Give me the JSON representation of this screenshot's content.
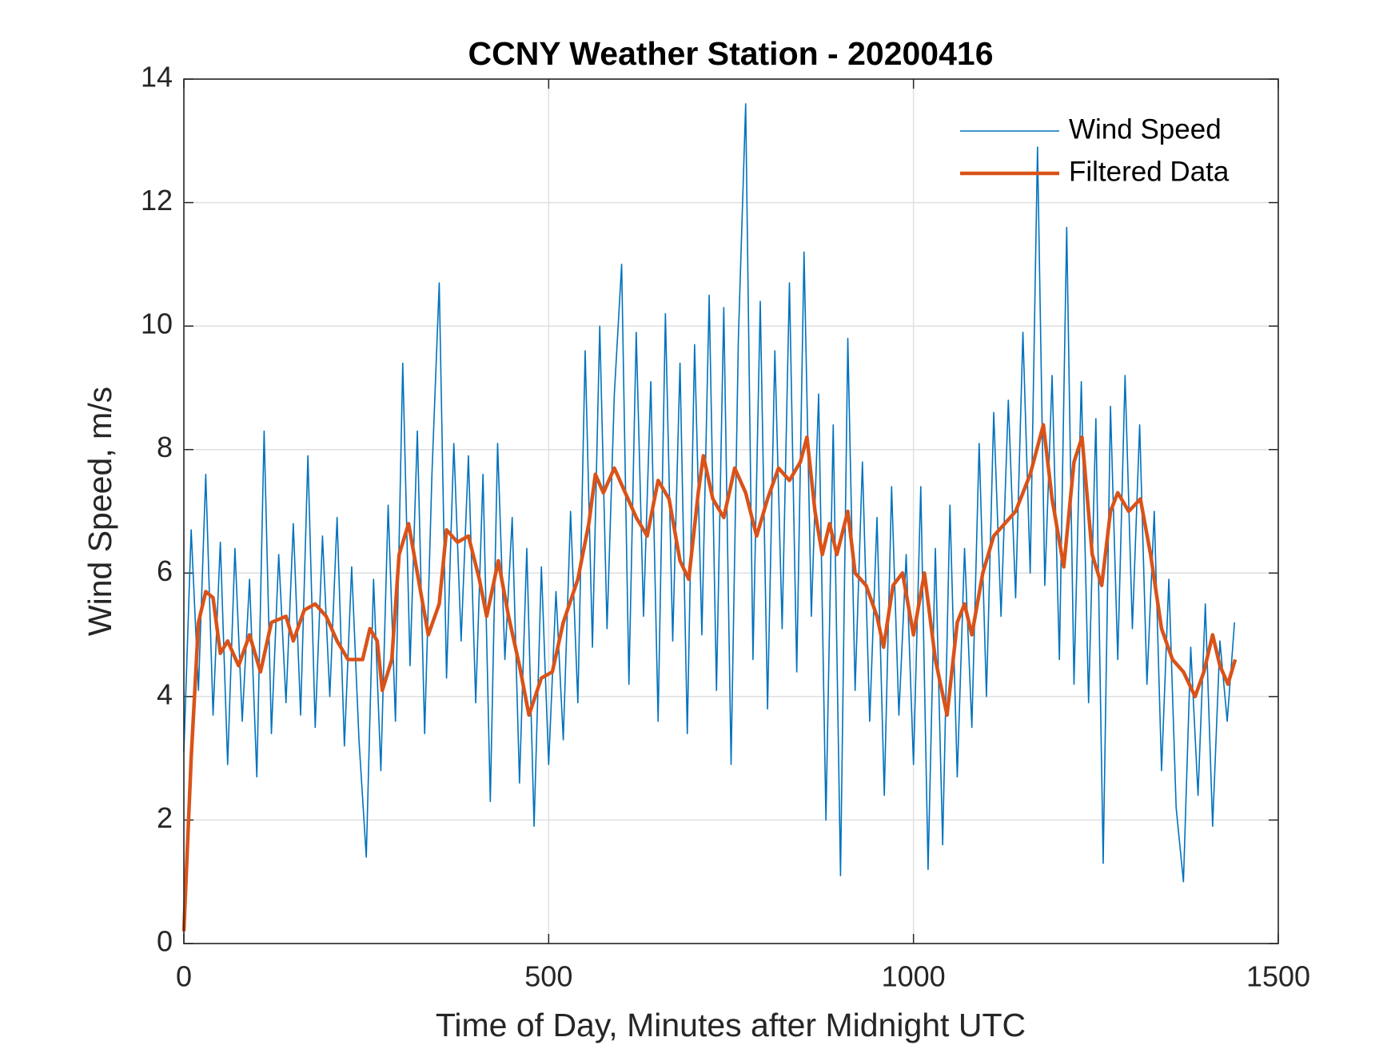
{
  "chart_data": {
    "type": "line",
    "title": "CCNY Weather Station - 20200416",
    "xlabel": "Time of Day, Minutes after Midnight UTC",
    "ylabel": "Wind Speed, m/s",
    "xlim": [
      0,
      1500
    ],
    "xticks": [
      0,
      500,
      1000,
      1500
    ],
    "ylim": [
      0,
      14
    ],
    "yticks": [
      0,
      2,
      4,
      6,
      8,
      10,
      12,
      14
    ],
    "grid": true,
    "legend": "top-right",
    "series": [
      {
        "name": "Wind Speed",
        "color": "#0072BD",
        "x": [
          0,
          10,
          20,
          30,
          40,
          50,
          60,
          70,
          80,
          90,
          100,
          110,
          120,
          130,
          140,
          150,
          160,
          170,
          180,
          190,
          200,
          210,
          220,
          230,
          240,
          250,
          260,
          270,
          280,
          290,
          300,
          310,
          320,
          330,
          340,
          350,
          360,
          370,
          380,
          390,
          400,
          410,
          420,
          430,
          440,
          450,
          460,
          470,
          480,
          490,
          500,
          510,
          520,
          530,
          540,
          550,
          560,
          570,
          580,
          590,
          600,
          610,
          620,
          630,
          640,
          650,
          660,
          670,
          680,
          690,
          700,
          710,
          720,
          730,
          740,
          750,
          760,
          770,
          780,
          790,
          800,
          810,
          820,
          830,
          840,
          850,
          860,
          870,
          880,
          890,
          900,
          910,
          920,
          930,
          940,
          950,
          960,
          970,
          980,
          990,
          1000,
          1010,
          1020,
          1030,
          1040,
          1050,
          1060,
          1070,
          1080,
          1090,
          1100,
          1110,
          1120,
          1130,
          1140,
          1150,
          1160,
          1170,
          1180,
          1190,
          1200,
          1210,
          1220,
          1230,
          1240,
          1250,
          1260,
          1270,
          1280,
          1290,
          1300,
          1310,
          1320,
          1330,
          1340,
          1350,
          1360,
          1370,
          1380,
          1390,
          1400,
          1410,
          1420,
          1430,
          1440
        ],
        "values": [
          3.1,
          6.7,
          4.1,
          7.6,
          3.7,
          6.5,
          2.9,
          6.4,
          3.6,
          5.9,
          2.7,
          8.3,
          3.4,
          6.3,
          3.9,
          6.8,
          3.7,
          7.9,
          3.5,
          6.6,
          4.0,
          6.9,
          3.2,
          6.1,
          3.3,
          1.4,
          5.9,
          2.8,
          7.1,
          3.6,
          9.4,
          4.5,
          8.3,
          3.4,
          7.6,
          10.7,
          4.3,
          8.1,
          4.9,
          7.9,
          3.9,
          7.6,
          2.3,
          8.1,
          4.6,
          6.9,
          2.6,
          6.4,
          1.9,
          6.1,
          2.9,
          5.7,
          3.3,
          7.0,
          3.9,
          9.6,
          4.8,
          10.0,
          5.1,
          8.9,
          11.0,
          4.2,
          9.9,
          5.3,
          9.1,
          3.6,
          10.2,
          4.9,
          9.4,
          3.4,
          9.7,
          5.0,
          10.5,
          4.1,
          10.3,
          2.9,
          9.8,
          13.6,
          4.6,
          10.4,
          3.8,
          9.6,
          5.1,
          10.7,
          4.4,
          11.2,
          5.3,
          8.9,
          2.0,
          8.4,
          1.1,
          9.8,
          4.1,
          7.8,
          3.6,
          6.9,
          2.4,
          7.4,
          3.7,
          6.3,
          2.9,
          7.4,
          1.2,
          6.4,
          1.6,
          7.1,
          2.7,
          6.4,
          3.5,
          8.1,
          4.0,
          8.6,
          5.3,
          8.8,
          5.6,
          9.9,
          6.0,
          12.9,
          5.8,
          9.2,
          4.6,
          11.6,
          4.2,
          9.1,
          3.9,
          8.5,
          1.3,
          8.7,
          4.6,
          9.2,
          5.1,
          8.4,
          4.2,
          7.0,
          2.8,
          5.9,
          2.2,
          1.0,
          4.8,
          2.4,
          5.5,
          1.9,
          4.9,
          3.6,
          5.2
        ]
      },
      {
        "name": "Filtered Data",
        "color": "#D95319",
        "x": [
          0,
          10,
          20,
          30,
          40,
          50,
          60,
          75,
          90,
          105,
          120,
          140,
          150,
          165,
          180,
          195,
          210,
          225,
          245,
          255,
          265,
          272,
          285,
          295,
          308,
          320,
          335,
          350,
          360,
          375,
          390,
          405,
          415,
          431,
          445,
          460,
          473,
          490,
          505,
          520,
          540,
          555,
          564,
          575,
          590,
          605,
          620,
          635,
          650,
          665,
          680,
          692,
          705,
          712,
          725,
          740,
          755,
          770,
          785,
          800,
          815,
          830,
          845,
          854,
          865,
          875,
          885,
          895,
          910,
          920,
          935,
          950,
          959,
          972,
          985,
          1000,
          1015,
          1030,
          1046,
          1060,
          1070,
          1080,
          1095,
          1110,
          1125,
          1140,
          1160,
          1178,
          1190,
          1206,
          1220,
          1231,
          1245,
          1258,
          1270,
          1280,
          1295,
          1311,
          1325,
          1340,
          1355,
          1370,
          1386,
          1398,
          1410,
          1420,
          1431,
          1441
        ],
        "values": [
          0.2,
          3.0,
          5.2,
          5.7,
          5.6,
          4.7,
          4.9,
          4.5,
          5.0,
          4.4,
          5.2,
          5.3,
          4.9,
          5.4,
          5.5,
          5.3,
          4.9,
          4.6,
          4.6,
          5.1,
          4.9,
          4.1,
          4.6,
          6.3,
          6.8,
          6.0,
          5.0,
          5.5,
          6.7,
          6.5,
          6.6,
          5.9,
          5.3,
          6.2,
          5.3,
          4.5,
          3.7,
          4.3,
          4.4,
          5.2,
          5.9,
          6.8,
          7.6,
          7.3,
          7.7,
          7.3,
          6.9,
          6.6,
          7.5,
          7.2,
          6.2,
          5.9,
          7.3,
          7.9,
          7.2,
          6.9,
          7.7,
          7.3,
          6.6,
          7.2,
          7.7,
          7.5,
          7.8,
          8.2,
          7.0,
          6.3,
          6.8,
          6.3,
          7.0,
          6.0,
          5.8,
          5.3,
          4.8,
          5.8,
          6.0,
          5.0,
          6.0,
          4.6,
          3.7,
          5.2,
          5.5,
          5.0,
          6.0,
          6.6,
          6.8,
          7.0,
          7.6,
          8.4,
          7.2,
          6.1,
          7.8,
          8.2,
          6.3,
          5.8,
          7.0,
          7.3,
          7.0,
          7.2,
          6.3,
          5.1,
          4.6,
          4.4,
          4.0,
          4.4,
          5.0,
          4.5,
          4.2,
          4.6
        ]
      }
    ]
  }
}
